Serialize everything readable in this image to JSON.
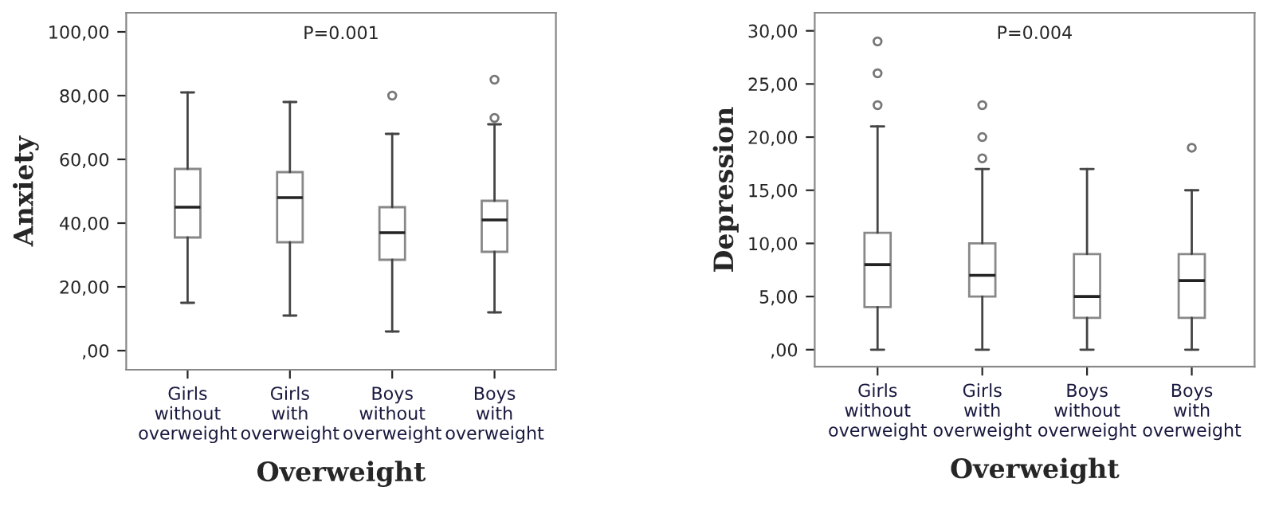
{
  "chart_data": [
    {
      "type": "box",
      "xlabel": "Overweight",
      "ylabel": "Anxiety",
      "annotations": [
        "P=0.001"
      ],
      "categories": [
        "Girls\nwithout\noverweight",
        "Girls\nwith\noverweight",
        "Boys\nwithout\noverweight",
        "Boys\nwith\noverweight"
      ],
      "boxes": [
        {
          "low": 15,
          "q1": 35.5,
          "median": 45,
          "q3": 57,
          "high": 81
        },
        {
          "low": 11,
          "q1": 34,
          "median": 48,
          "q3": 56,
          "high": 78
        },
        {
          "low": 6,
          "q1": 28.5,
          "median": 37,
          "q3": 45,
          "high": 68,
          "outliers": [
            80
          ]
        },
        {
          "low": 12,
          "q1": 31,
          "median": 41,
          "q3": 47,
          "high": 71,
          "outliers": [
            85,
            73
          ]
        }
      ],
      "ylim": [
        -6,
        106
      ],
      "yticks": [
        {
          "value": 0,
          "label": ",00"
        },
        {
          "value": 20,
          "label": "20,00"
        },
        {
          "value": 40,
          "label": "40,00"
        },
        {
          "value": 60,
          "label": "60,00"
        },
        {
          "value": 80,
          "label": "80,00"
        },
        {
          "value": 100,
          "label": "100,00"
        }
      ],
      "grid": false
    },
    {
      "type": "box",
      "xlabel": "Overweight",
      "ylabel": "Depression",
      "annotations": [
        "P=0.004"
      ],
      "categories": [
        "Girls\nwithout\noverweight",
        "Girls\nwith\noverweight",
        "Boys\nwithout\noverweight",
        "Boys\nwith\noverweight"
      ],
      "boxes": [
        {
          "low": 0,
          "q1": 4,
          "median": 8,
          "q3": 11,
          "high": 21,
          "outliers": [
            29,
            26,
            23
          ]
        },
        {
          "low": 0,
          "q1": 5,
          "median": 7,
          "q3": 10,
          "high": 17,
          "outliers": [
            23,
            20,
            18
          ]
        },
        {
          "low": 0,
          "q1": 3,
          "median": 5,
          "q3": 9,
          "high": 17
        },
        {
          "low": 0,
          "q1": 3,
          "median": 6.5,
          "q3": 9,
          "high": 15,
          "outliers": [
            19
          ]
        }
      ],
      "ylim": [
        -1.6,
        31.7
      ],
      "yticks": [
        {
          "value": 0,
          "label": ",00"
        },
        {
          "value": 5,
          "label": "5,00"
        },
        {
          "value": 10,
          "label": "10,00"
        },
        {
          "value": 15,
          "label": "15,00"
        },
        {
          "value": 20,
          "label": "20,00"
        },
        {
          "value": 25,
          "label": "25,00"
        },
        {
          "value": 30,
          "label": "30,00"
        }
      ],
      "grid": false
    }
  ]
}
